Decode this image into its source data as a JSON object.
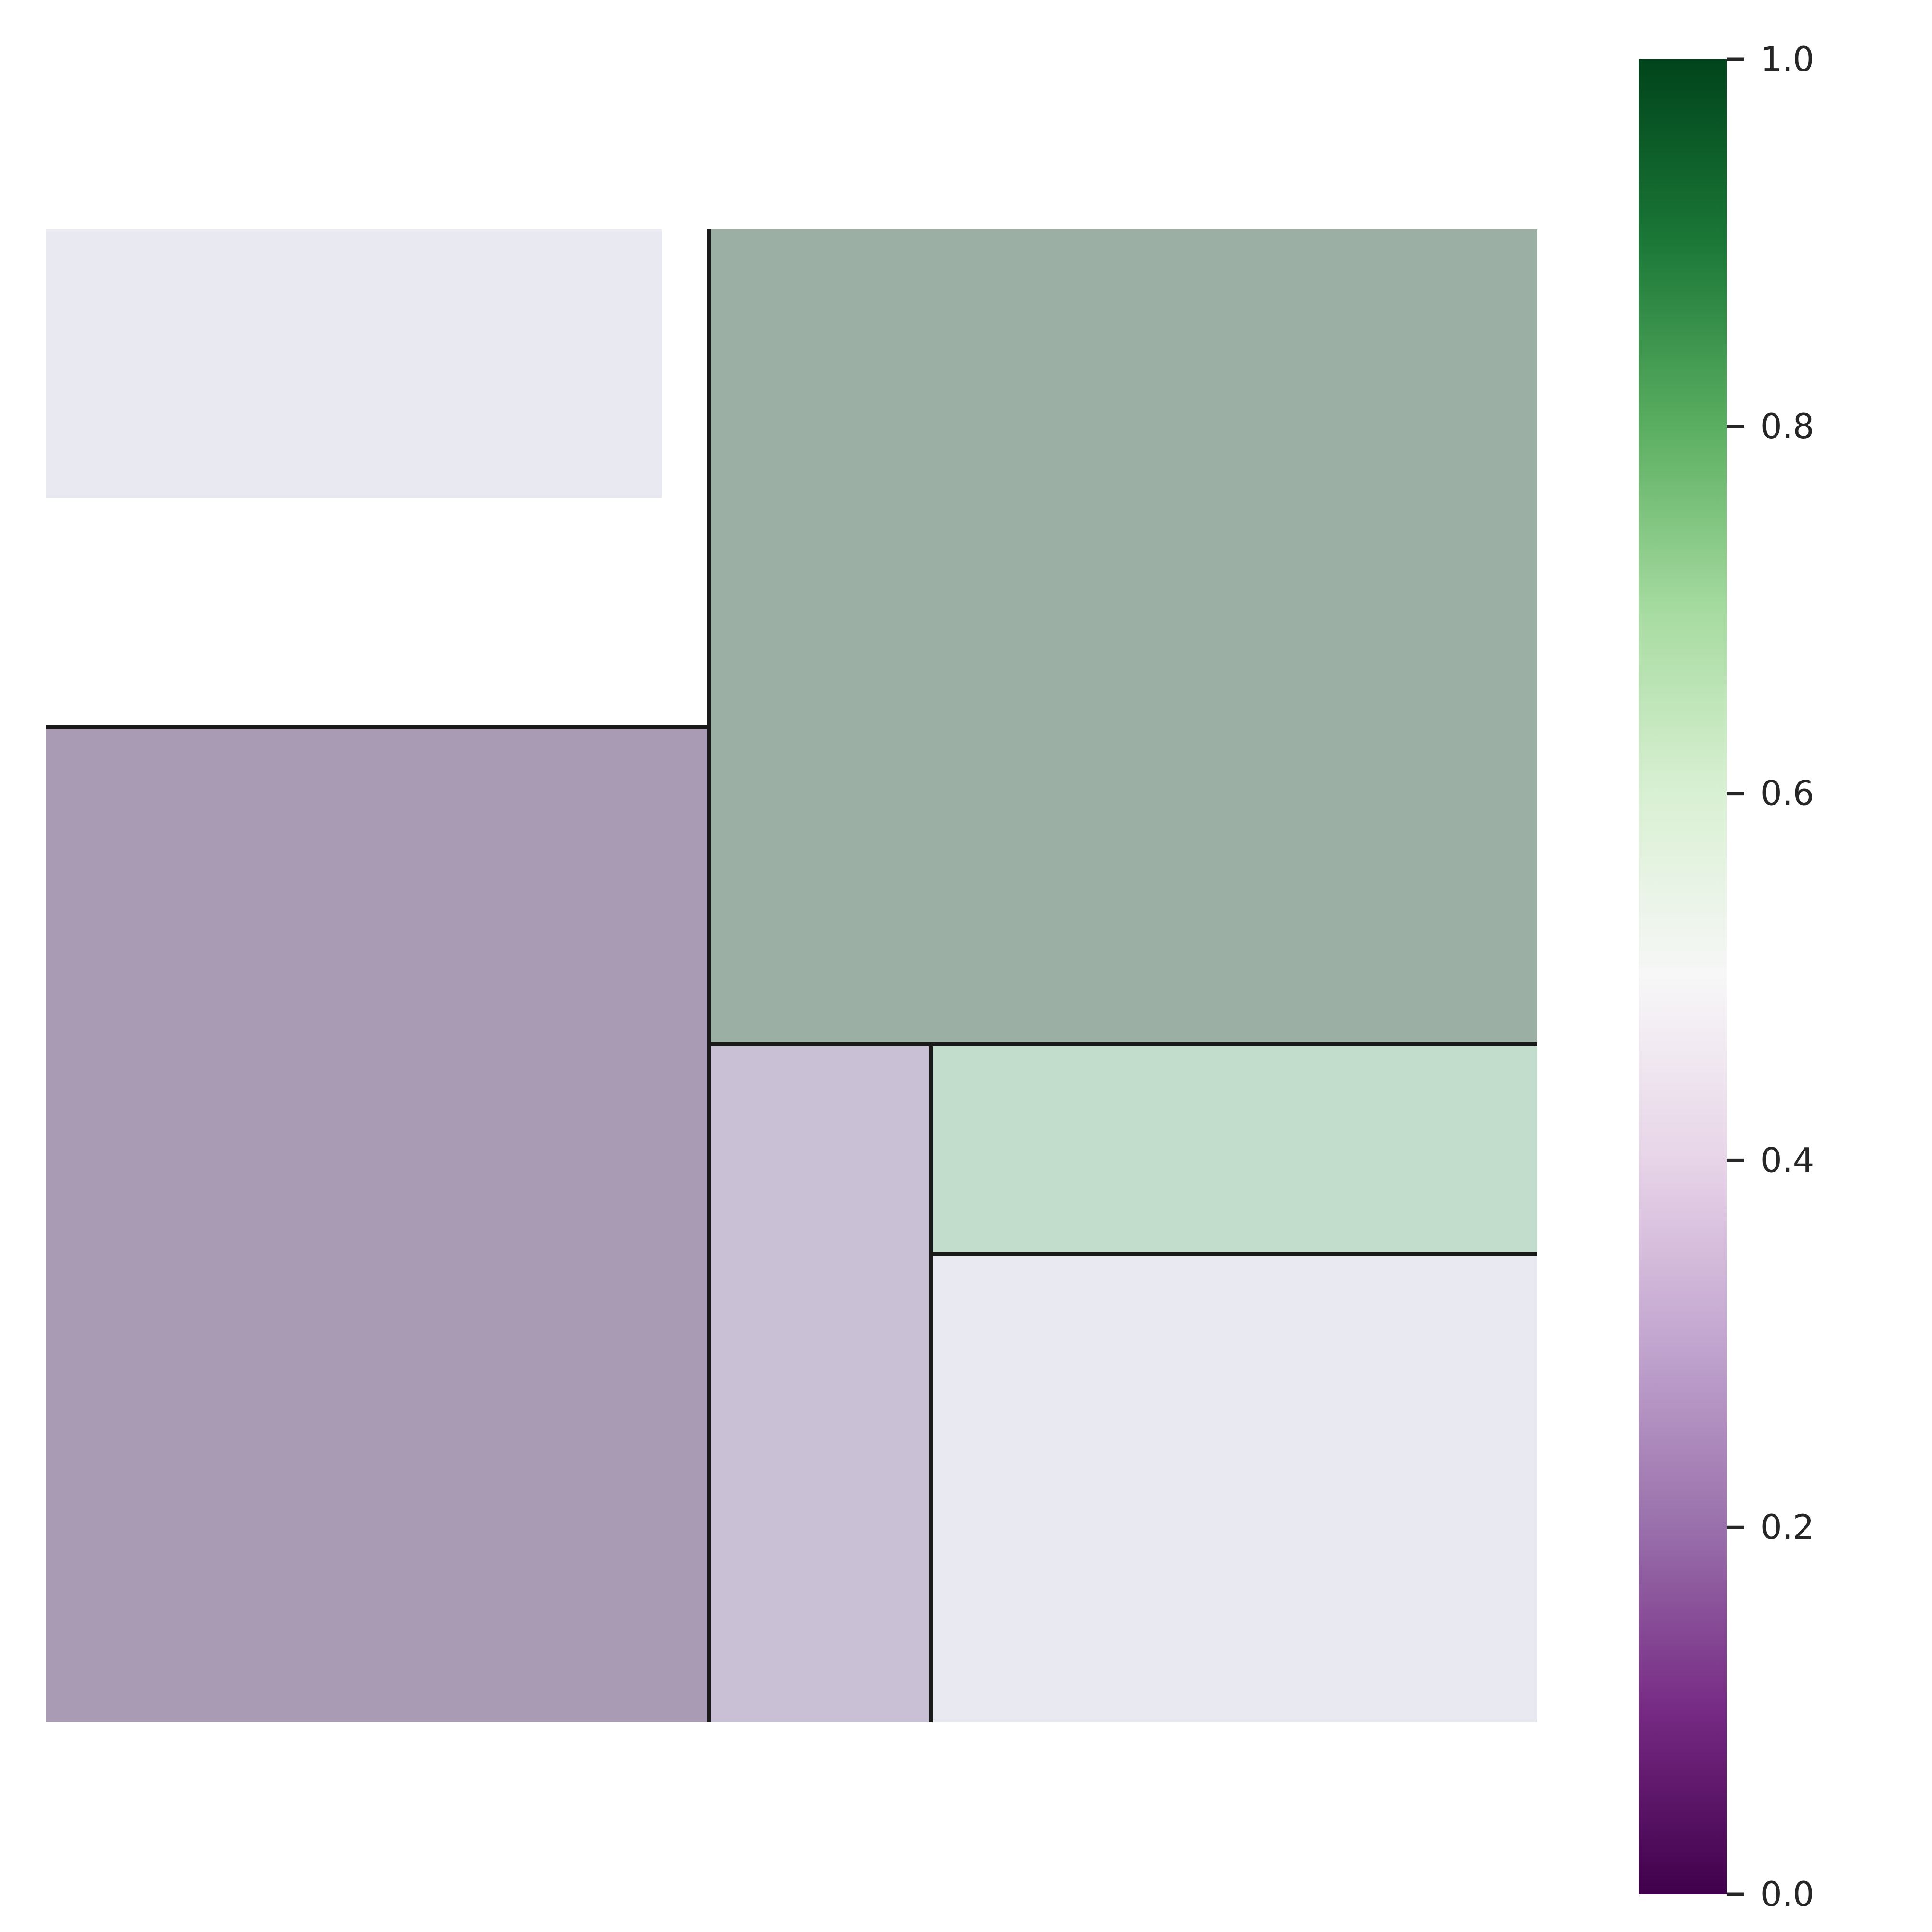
{
  "chart_data": {
    "type": "treemap",
    "title": "",
    "colormap": "PRGn",
    "cell_alpha": 0.4,
    "grid": false,
    "legend": "none",
    "cells": [
      {
        "value": 0.47,
        "color": "#e9e9f1"
      },
      {
        "value": 0.95,
        "color": "#9cafa4"
      },
      {
        "value": 0.22,
        "color": "#aa9bb5"
      },
      {
        "value": 0.35,
        "color": "#c9c0d5"
      },
      {
        "value": 0.65,
        "color": "#c3ddcc"
      },
      {
        "value": 0.47,
        "color": "#e9e9f1"
      }
    ],
    "colorbar": {
      "range": [
        0.0,
        1.0
      ],
      "ticks": [
        "0.0",
        "0.2",
        "0.4",
        "0.6",
        "0.8",
        "1.0"
      ],
      "tick_values": [
        0.0,
        0.2,
        0.4,
        0.6,
        0.8,
        1.0
      ],
      "gradient_stops": [
        {
          "value": 0.0,
          "color": "#40004b"
        },
        {
          "value": 0.1,
          "color": "#762a83"
        },
        {
          "value": 0.2,
          "color": "#9970ab"
        },
        {
          "value": 0.3,
          "color": "#c2a5cf"
        },
        {
          "value": 0.4,
          "color": "#e7d4e8"
        },
        {
          "value": 0.5,
          "color": "#f7f7f7"
        },
        {
          "value": 0.6,
          "color": "#d9f0d3"
        },
        {
          "value": 0.7,
          "color": "#a6dba0"
        },
        {
          "value": 0.8,
          "color": "#5aae61"
        },
        {
          "value": 0.9,
          "color": "#1b7837"
        },
        {
          "value": 1.0,
          "color": "#00441b"
        }
      ]
    }
  }
}
